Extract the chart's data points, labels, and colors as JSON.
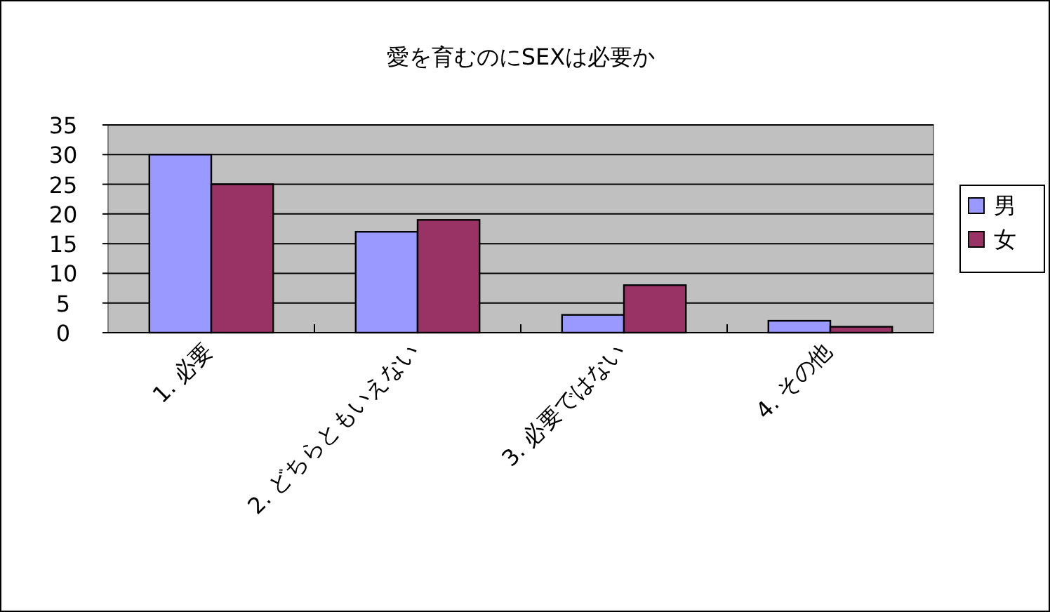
{
  "chart_data": {
    "type": "bar",
    "title": "愛を育むのにSEXは必要か",
    "categories": [
      "1. 必要",
      "2. どちらともいえない",
      "3. 必要ではない",
      "4. その他"
    ],
    "series": [
      {
        "name": "男",
        "color": "#9999ff",
        "values": [
          30,
          17,
          3,
          2
        ]
      },
      {
        "name": "女",
        "color": "#993366",
        "values": [
          25,
          19,
          8,
          1
        ]
      }
    ],
    "ylim": [
      0,
      35
    ],
    "yticks": [
      0,
      5,
      10,
      15,
      20,
      25,
      30,
      35
    ],
    "grid": "y",
    "legend": "right"
  }
}
